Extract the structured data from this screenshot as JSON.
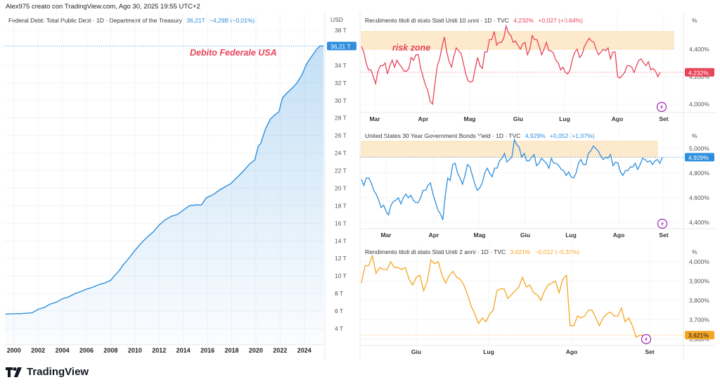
{
  "credit": "Alex975 creato con TradingView.com, Ago 30, 2025 19:55 UTC+2",
  "brand": "TradingView",
  "colors": {
    "debt": "#2f8fdd",
    "y10": "#e8445a",
    "y30": "#2f8fdd",
    "y2": "#f5a623",
    "risk": "#fde9cc",
    "annot": "#e8445a",
    "bolt": "#9c27b0"
  },
  "chart_data": [
    {
      "id": "debt",
      "type": "area",
      "title": "Federal Debt: Total Public Debt · 1D · Department of the Treasury",
      "last_value": "36,21T",
      "change": "−4,29B (−0,01%)",
      "unit_label": "USD",
      "annotation": "Debito Federale USA",
      "price_tag": "36,21 T",
      "ylim": [
        3,
        38.5
      ],
      "xlim": [
        1999.2,
        2025.7
      ],
      "y_ticks": [
        {
          "v": 38,
          "l": "38 T"
        },
        {
          "v": 34,
          "l": "34 T"
        },
        {
          "v": 32,
          "l": "32 T"
        },
        {
          "v": 30,
          "l": "30 T"
        },
        {
          "v": 28,
          "l": "28 T"
        },
        {
          "v": 26,
          "l": "26 T"
        },
        {
          "v": 24,
          "l": "24 T"
        },
        {
          "v": 22,
          "l": "22 T"
        },
        {
          "v": 20,
          "l": "20 T"
        },
        {
          "v": 18,
          "l": "18 T"
        },
        {
          "v": 16,
          "l": "16 T"
        },
        {
          "v": 14,
          "l": "14 T"
        },
        {
          "v": 12,
          "l": "12 T"
        },
        {
          "v": 10,
          "l": "10 T"
        },
        {
          "v": 8,
          "l": "8 T"
        },
        {
          "v": 6,
          "l": "6 T"
        },
        {
          "v": 4,
          "l": "4 T"
        }
      ],
      "x_ticks": [
        "2000",
        "2002",
        "2004",
        "2006",
        "2008",
        "2010",
        "2012",
        "2014",
        "2016",
        "2018",
        "2020",
        "2022",
        "2024"
      ],
      "x": [
        1999.3,
        2000,
        2000.5,
        2001,
        2001.5,
        2002,
        2002.5,
        2003,
        2003.5,
        2004,
        2004.5,
        2005,
        2005.5,
        2006,
        2006.5,
        2007,
        2007.5,
        2008,
        2008.3,
        2008.7,
        2009,
        2009.5,
        2010,
        2010.5,
        2011,
        2011.5,
        2012,
        2012.5,
        2013,
        2013.5,
        2014,
        2014.5,
        2015,
        2015.5,
        2015.9,
        2016.5,
        2017,
        2017.5,
        2017.9,
        2018.5,
        2019,
        2019.5,
        2019.9,
        2020.2,
        2020.4,
        2020.8,
        2021.2,
        2021.6,
        2021.9,
        2022.2,
        2022.6,
        2023,
        2023.4,
        2023.8,
        2024.2,
        2024.6,
        2025,
        2025.3,
        2025.6
      ],
      "values": [
        5.65,
        5.7,
        5.7,
        5.75,
        5.8,
        6.2,
        6.4,
        6.8,
        7.0,
        7.4,
        7.6,
        7.95,
        8.2,
        8.5,
        8.7,
        9.0,
        9.2,
        9.5,
        10.0,
        10.6,
        11.2,
        12.0,
        12.9,
        13.7,
        14.4,
        15.0,
        15.8,
        16.4,
        16.8,
        17.0,
        17.5,
        18.0,
        18.1,
        18.1,
        18.9,
        19.3,
        19.8,
        20.2,
        20.5,
        21.3,
        22.0,
        22.8,
        23.2,
        24.8,
        25.1,
        26.8,
        27.9,
        28.4,
        28.7,
        30.3,
        30.9,
        31.4,
        32.0,
        32.9,
        34.2,
        35.0,
        35.8,
        36.21,
        36.21
      ]
    },
    {
      "id": "y10",
      "type": "line",
      "title": "Rendimento titoli di stato Stati Uniti 10 anni · 1D · TVC",
      "last_value": "4,232%",
      "change": "+0,027 (+0,64%)",
      "unit_label": "%",
      "annotation": "risk zone",
      "risk_zone": [
        4.4,
        4.53
      ],
      "price_tag": "4,232%",
      "ylim": [
        3.93,
        4.62
      ],
      "y_ticks": [
        {
          "v": 4.4,
          "l": "4,400%"
        },
        {
          "v": 4.2,
          "l": "4,200%"
        },
        {
          "v": 4.0,
          "l": "4,000%"
        }
      ],
      "months": [
        "Mar",
        "Apr",
        "Mag",
        "Giu",
        "Lug",
        "Ago",
        "Set"
      ],
      "values": [
        4.42,
        4.38,
        4.3,
        4.25,
        4.25,
        4.2,
        4.15,
        4.24,
        4.28,
        4.28,
        4.3,
        4.22,
        4.28,
        4.32,
        4.27,
        4.32,
        4.29,
        4.27,
        4.24,
        4.24,
        4.26,
        4.34,
        4.32,
        4.36,
        4.36,
        4.26,
        4.2,
        4.14,
        4.1,
        4.02,
        4.0,
        4.15,
        4.28,
        4.33,
        4.42,
        4.49,
        4.38,
        4.31,
        4.27,
        4.35,
        4.41,
        4.39,
        4.37,
        4.3,
        4.22,
        4.17,
        4.16,
        4.17,
        4.26,
        4.34,
        4.28,
        4.26,
        4.38,
        4.38,
        4.47,
        4.47,
        4.53,
        4.43,
        4.45,
        4.45,
        4.48,
        4.57,
        4.52,
        4.5,
        4.45,
        4.46,
        4.43,
        4.4,
        4.44,
        4.45,
        4.36,
        4.4,
        4.5,
        4.47,
        4.47,
        4.42,
        4.36,
        4.4,
        4.45,
        4.39,
        4.39,
        4.37,
        4.32,
        4.3,
        4.25,
        4.27,
        4.23,
        4.22,
        4.25,
        4.33,
        4.38,
        4.4,
        4.34,
        4.36,
        4.42,
        4.45,
        4.48,
        4.46,
        4.45,
        4.4,
        4.36,
        4.38,
        4.4,
        4.39,
        4.41,
        4.33,
        4.38,
        4.38,
        4.2,
        4.19,
        4.21,
        4.23,
        4.28,
        4.28,
        4.27,
        4.23,
        4.28,
        4.32,
        4.33,
        4.3,
        4.28,
        4.31,
        4.25,
        4.26,
        4.24,
        4.2,
        4.232
      ]
    },
    {
      "id": "y30",
      "type": "line",
      "title": "United States 30 Year Government Bonds Yield · 1D · TVC",
      "last_value": "4,929%",
      "change": "+0,052 (+1,07%)",
      "unit_label": "%",
      "risk_zone": [
        4.93,
        5.06
      ],
      "price_tag": "4,929%",
      "ylim": [
        4.34,
        5.1
      ],
      "y_ticks": [
        {
          "v": 5.0,
          "l": "5,000%"
        },
        {
          "v": 4.8,
          "l": "4,800%"
        },
        {
          "v": 4.6,
          "l": "4,600%"
        },
        {
          "v": 4.4,
          "l": "4,400%"
        }
      ],
      "months": [
        "Mar",
        "Apr",
        "Mag",
        "Giu",
        "Lug",
        "Ago",
        "Set"
      ],
      "values": [
        4.75,
        4.7,
        4.76,
        4.76,
        4.72,
        4.66,
        4.63,
        4.58,
        4.52,
        4.54,
        4.49,
        4.46,
        4.54,
        4.57,
        4.58,
        4.6,
        4.55,
        4.6,
        4.63,
        4.6,
        4.62,
        4.58,
        4.56,
        4.56,
        4.6,
        4.66,
        4.66,
        4.7,
        4.72,
        4.63,
        4.57,
        4.5,
        4.47,
        4.42,
        4.62,
        4.76,
        4.74,
        4.87,
        4.88,
        4.8,
        4.76,
        4.71,
        4.78,
        4.87,
        4.85,
        4.78,
        4.71,
        4.66,
        4.68,
        4.72,
        4.8,
        4.84,
        4.8,
        4.77,
        4.84,
        4.84,
        4.9,
        4.92,
        4.96,
        4.89,
        4.91,
        4.93,
        5.07,
        5.03,
        5.01,
        4.93,
        4.96,
        4.9,
        4.9,
        4.93,
        4.95,
        4.86,
        4.88,
        4.92,
        4.9,
        4.88,
        4.84,
        4.92,
        4.88,
        4.88,
        4.86,
        4.83,
        4.82,
        4.78,
        4.81,
        4.77,
        4.76,
        4.8,
        4.88,
        4.91,
        4.87,
        4.87,
        4.96,
        4.98,
        5.02,
        5.0,
        4.98,
        4.94,
        4.91,
        4.93,
        4.92,
        4.95,
        4.86,
        4.89,
        4.88,
        4.81,
        4.78,
        4.82,
        4.82,
        4.85,
        4.85,
        4.88,
        4.83,
        4.87,
        4.92,
        4.91,
        4.89,
        4.9,
        4.87,
        4.9,
        4.91,
        4.88,
        4.929
      ]
    },
    {
      "id": "y2",
      "type": "line",
      "title": "Rendimento titoli di stato Stati Uniti 2 anni · 1D · TVC",
      "last_value": "3,621%",
      "change": "−0,012 (−0,33%)",
      "unit_label": "%",
      "price_tag": "3,621%",
      "ylim": [
        3.55,
        4.03
      ],
      "y_ticks": [
        {
          "v": 4.0,
          "l": "4,000%"
        },
        {
          "v": 3.9,
          "l": "3,900%"
        },
        {
          "v": 3.8,
          "l": "3,800%"
        },
        {
          "v": 3.7,
          "l": "3,700%"
        },
        {
          "v": 3.6,
          "l": "3,600%"
        }
      ],
      "months": [
        "Giu",
        "Lug",
        "Ago",
        "Set"
      ],
      "values": [
        3.89,
        3.98,
        3.98,
        4.03,
        3.94,
        3.97,
        3.96,
        3.96,
        4.0,
        3.97,
        3.97,
        3.96,
        3.97,
        3.91,
        3.88,
        3.92,
        3.93,
        3.85,
        3.9,
        4.01,
        3.99,
        4.0,
        3.93,
        3.89,
        3.93,
        3.95,
        3.92,
        3.91,
        3.88,
        3.83,
        3.77,
        3.73,
        3.68,
        3.71,
        3.69,
        3.73,
        3.75,
        3.85,
        3.86,
        3.86,
        3.81,
        3.83,
        3.85,
        3.87,
        3.92,
        3.87,
        3.88,
        3.84,
        3.83,
        3.8,
        3.85,
        3.88,
        3.89,
        3.9,
        3.84,
        3.91,
        3.93,
        3.67,
        3.67,
        3.72,
        3.71,
        3.72,
        3.75,
        3.75,
        3.71,
        3.67,
        3.71,
        3.73,
        3.74,
        3.72,
        3.72,
        3.76,
        3.69,
        3.71,
        3.67,
        3.61,
        3.62,
        3.621
      ]
    }
  ]
}
